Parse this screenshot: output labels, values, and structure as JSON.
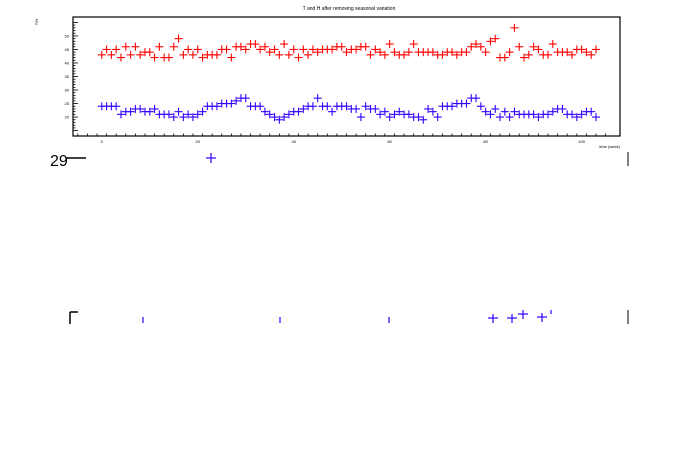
{
  "chart_data": {
    "type": "scatter",
    "title": "T and H after removing seasonal variation",
    "xlabel": "time (week)",
    "ylabel": "T/H",
    "xlim": [
      -6,
      108
    ],
    "ylim": [
      13,
      57
    ],
    "x_ticks": [
      0,
      20,
      40,
      60,
      80,
      100
    ],
    "y_ticks": [
      20,
      25,
      30,
      35,
      40,
      45,
      50
    ],
    "grid": false,
    "legend": "none",
    "marker": "cross",
    "series": [
      {
        "color": "#ff0000",
        "x": [
          0,
          1,
          2,
          3,
          4,
          5,
          6,
          7,
          8,
          9,
          10,
          11,
          12,
          13,
          14,
          15,
          16,
          17,
          18,
          19,
          20,
          21,
          22,
          23,
          24,
          25,
          26,
          27,
          28,
          29,
          30,
          31,
          32,
          33,
          34,
          35,
          36,
          37,
          38,
          39,
          40,
          41,
          42,
          43,
          44,
          45,
          46,
          47,
          48,
          49,
          50,
          51,
          52,
          53,
          54,
          55,
          56,
          57,
          58,
          59,
          60,
          61,
          62,
          63,
          64,
          65,
          66,
          67,
          68,
          69,
          70,
          71,
          72,
          73,
          74,
          75,
          76,
          77,
          78,
          79,
          80,
          81,
          82,
          83,
          84,
          85,
          86,
          87,
          88,
          89,
          90,
          91,
          92,
          93,
          94,
          95,
          96,
          97,
          98,
          99,
          100,
          101,
          102,
          103
        ],
        "y": [
          43,
          45,
          43,
          45,
          42,
          46,
          43,
          46,
          43,
          44,
          44,
          42,
          46,
          42,
          42,
          46,
          49,
          43,
          45,
          43,
          45,
          42,
          43,
          43,
          43,
          45,
          45,
          42,
          46,
          46,
          45,
          47,
          47,
          45,
          46,
          44,
          45,
          43,
          47,
          43,
          45,
          42,
          45,
          43,
          45,
          44,
          45,
          45,
          45,
          46,
          46,
          44,
          45,
          45,
          46,
          46,
          43,
          45,
          44,
          43,
          47,
          44,
          43,
          43,
          44,
          47,
          44,
          44,
          44,
          44,
          43,
          43,
          44,
          44,
          43,
          44,
          44,
          46,
          47,
          46,
          44,
          48,
          49,
          42,
          42,
          44,
          53,
          46,
          42,
          43,
          46,
          45,
          43,
          43,
          47,
          44,
          44,
          44,
          43,
          45,
          45,
          44,
          43,
          45
        ]
      },
      {
        "color": "#3300ff",
        "x": [
          0,
          1,
          2,
          3,
          4,
          5,
          6,
          7,
          8,
          9,
          10,
          11,
          12,
          13,
          14,
          15,
          16,
          17,
          18,
          19,
          20,
          21,
          22,
          23,
          24,
          25,
          26,
          27,
          28,
          29,
          30,
          31,
          32,
          33,
          34,
          35,
          36,
          37,
          38,
          39,
          40,
          41,
          42,
          43,
          44,
          45,
          46,
          47,
          48,
          49,
          50,
          51,
          52,
          53,
          54,
          55,
          56,
          57,
          58,
          59,
          60,
          61,
          62,
          63,
          64,
          65,
          66,
          67,
          68,
          69,
          70,
          71,
          72,
          73,
          74,
          75,
          76,
          77,
          78,
          79,
          80,
          81,
          82,
          83,
          84,
          85,
          86,
          87,
          88,
          89,
          90,
          91,
          92,
          93,
          94,
          95,
          96,
          97,
          98,
          99,
          100,
          101,
          102,
          103
        ],
        "y": [
          24,
          24,
          24,
          24,
          21,
          22,
          22,
          23,
          23,
          22,
          22,
          23,
          21,
          21,
          21,
          20,
          22,
          20,
          21,
          20,
          21,
          22,
          24,
          24,
          24,
          25,
          25,
          25,
          26,
          27,
          27,
          24,
          24,
          24,
          22,
          21,
          20,
          19,
          20,
          21,
          22,
          22,
          23,
          24,
          24,
          27,
          24,
          24,
          22,
          24,
          24,
          24,
          23,
          23,
          20,
          24,
          23,
          23,
          21,
          22,
          20,
          21,
          22,
          21,
          21,
          20,
          20,
          19,
          23,
          22,
          20,
          24,
          24,
          24,
          25,
          25,
          25,
          27,
          27,
          24,
          22,
          21,
          23,
          20,
          22,
          20,
          22,
          21,
          21,
          21,
          21,
          20,
          21,
          21,
          22,
          23,
          23,
          21,
          21,
          20,
          21,
          22,
          22,
          20
        ]
      }
    ]
  }
}
